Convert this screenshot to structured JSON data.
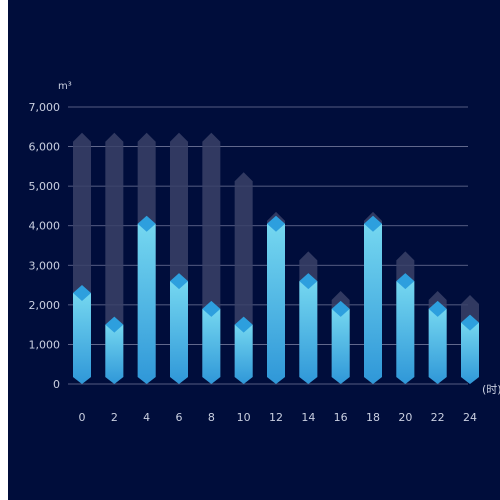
{
  "chart_data": {
    "type": "bar",
    "categories": [
      "0",
      "2",
      "4",
      "6",
      "8",
      "10",
      "12",
      "14",
      "16",
      "18",
      "20",
      "22",
      "24"
    ],
    "series": [
      {
        "values": [
          6300,
          6300,
          6300,
          6300,
          6300,
          5300,
          4300,
          3300,
          2300,
          4300,
          3300,
          2300,
          2200
        ]
      },
      {
        "values": [
          2300,
          1500,
          4050,
          2600,
          1900,
          1500,
          4050,
          2600,
          1900,
          4050,
          2600,
          1900,
          1550
        ]
      }
    ],
    "ylabel": "m³",
    "xlabel": "(时)",
    "yticks": [
      "0",
      "1,000",
      "2,000",
      "3,000",
      "4,000",
      "5,000",
      "6,000",
      "7,000"
    ],
    "ylim": [
      0,
      7000
    ],
    "grid": true,
    "colors": {
      "background": "#000d3b",
      "grid": "#6f7699",
      "text": "#c9cfe0",
      "bar_top": "#75d7f0",
      "bar_bottom": "#2f97d8",
      "cap": "#2d9fde",
      "background_bar": "#3a4268"
    }
  }
}
